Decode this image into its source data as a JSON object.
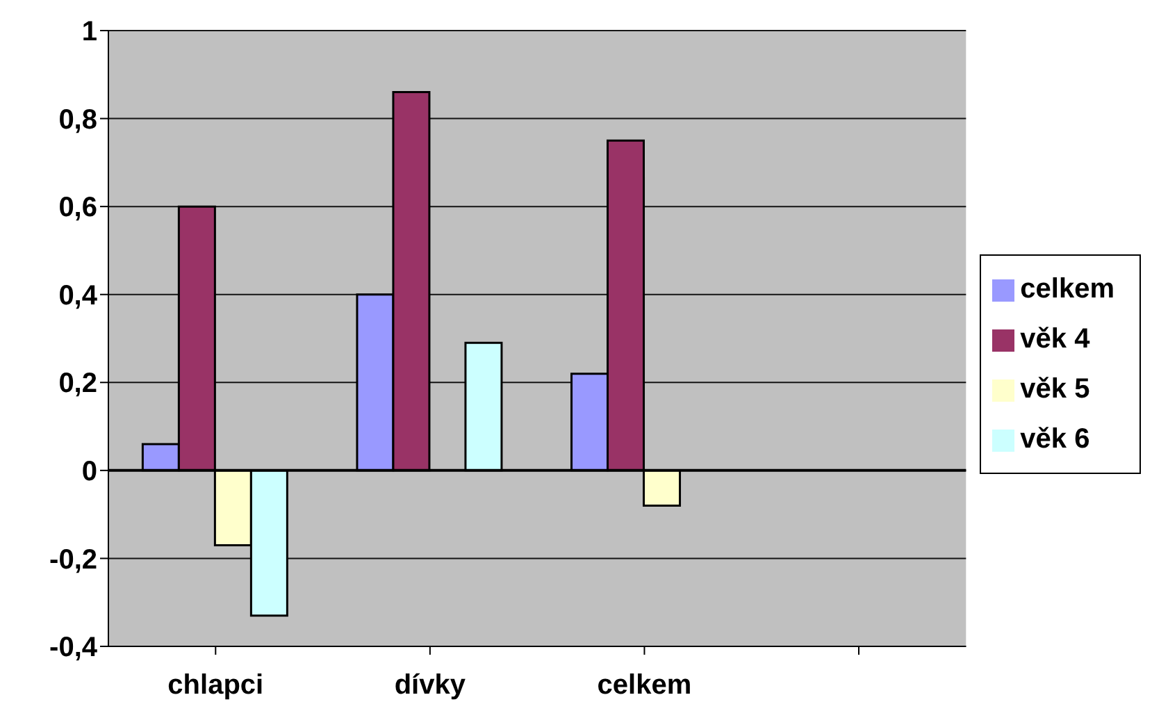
{
  "chart_data": {
    "type": "bar",
    "categories": [
      "chlapci",
      "dívky",
      "celkem",
      null
    ],
    "series": [
      {
        "name": "celkem",
        "color": "#9999ff",
        "values": [
          0.06,
          0.4,
          0.22,
          null
        ]
      },
      {
        "name": "věk 4",
        "color": "#993366",
        "values": [
          0.6,
          0.86,
          0.75,
          null
        ]
      },
      {
        "name": "věk 5",
        "color": "#ffffcc",
        "values": [
          -0.17,
          null,
          -0.08,
          null
        ]
      },
      {
        "name": "věk 6",
        "color": "#ccffff",
        "values": [
          -0.33,
          0.29,
          null,
          null
        ]
      }
    ],
    "ylim": [
      -0.4,
      1
    ],
    "yticks": [
      {
        "value": -0.4,
        "label": "-0,4"
      },
      {
        "value": -0.2,
        "label": "-0,2"
      },
      {
        "value": 0,
        "label": "0"
      },
      {
        "value": 0.2,
        "label": "0,2"
      },
      {
        "value": 0.4,
        "label": "0,4"
      },
      {
        "value": 0.6,
        "label": "0,6"
      },
      {
        "value": 0.8,
        "label": "0,8"
      },
      {
        "value": 1,
        "label": "1"
      }
    ],
    "grid": "y",
    "legend": "right"
  }
}
